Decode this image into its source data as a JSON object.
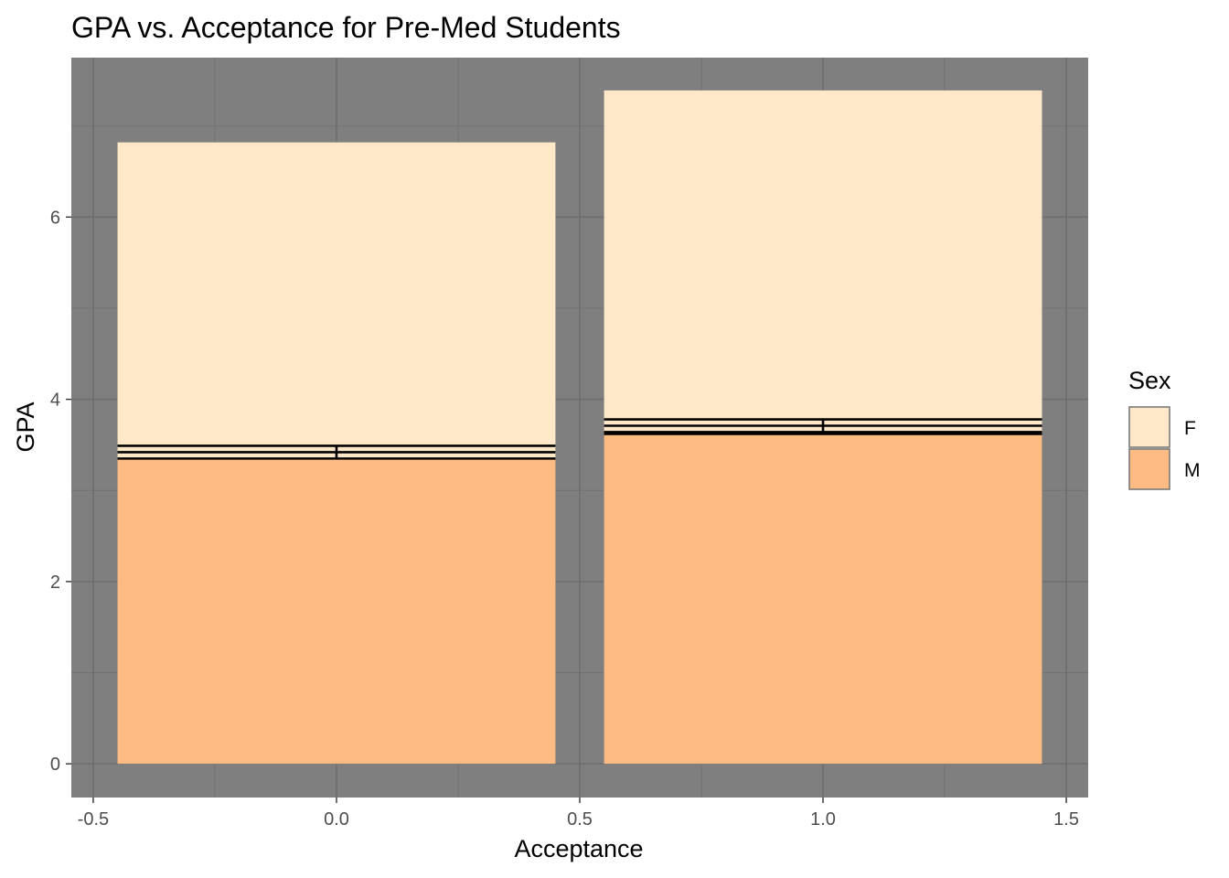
{
  "chart_data": {
    "type": "bar",
    "stacked": true,
    "title": "GPA vs. Acceptance for Pre-Med Students",
    "xlabel": "Acceptance",
    "ylabel": "GPA",
    "xlim": [
      -0.545,
      1.545
    ],
    "ylim": [
      -0.37,
      7.75
    ],
    "x_ticks": [
      -0.5,
      0.0,
      0.5,
      1.0,
      1.5
    ],
    "x_tick_labels": [
      "-0.5",
      "0.0",
      "0.5",
      "1.0",
      "1.5"
    ],
    "y_ticks": [
      0,
      2,
      4,
      6
    ],
    "y_tick_labels": [
      "0",
      "2",
      "4",
      "6"
    ],
    "bar_width": 0.9,
    "categories": [
      0,
      1
    ],
    "series": [
      {
        "name": "M",
        "color": "#FDBB84",
        "values": [
          3.35,
          3.62
        ]
      },
      {
        "name": "F",
        "color": "#FEE8C8",
        "values": [
          3.47,
          3.77
        ]
      }
    ],
    "error_bars": [
      {
        "x": 0,
        "ymin": 3.35,
        "ymax": 3.49
      },
      {
        "x": 1,
        "ymin": 3.62,
        "ymax": 3.78
      }
    ],
    "outline_lines": [
      {
        "x": 0,
        "y": [
          3.35,
          3.42,
          3.49
        ]
      },
      {
        "x": 1,
        "y": [
          3.62,
          3.64,
          3.71,
          3.78
        ]
      }
    ],
    "legend": {
      "title": "Sex",
      "placement": "right",
      "entries": [
        "F",
        "M"
      ]
    },
    "panel_color": "#7F7F7F",
    "grid": true
  }
}
